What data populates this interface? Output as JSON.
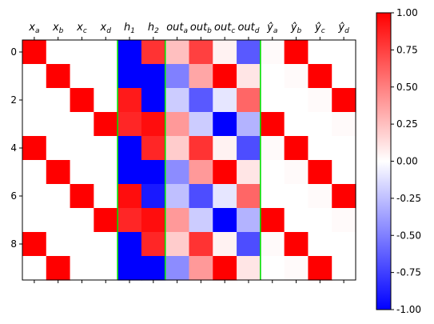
{
  "chart_data": {
    "type": "heatmap",
    "title": "",
    "xlabel": "",
    "ylabel": "",
    "columns": [
      "x_a",
      "x_b",
      "x_c",
      "x_d",
      "h_1",
      "h_2",
      "out_a",
      "out_b",
      "out_c",
      "out_d",
      "ŷ_a",
      "ŷ_b",
      "ŷ_c",
      "ŷ_d"
    ],
    "rows": [
      0,
      1,
      2,
      3,
      4,
      5,
      6,
      7,
      8,
      9
    ],
    "y_ticks": [
      0,
      2,
      4,
      6,
      8
    ],
    "values": [
      [
        1,
        0,
        0,
        0,
        -1.0,
        0.8,
        0.25,
        0.75,
        0.05,
        -0.65,
        0.02,
        1,
        0,
        0
      ],
      [
        0,
        1,
        0,
        0,
        -1.0,
        -1.0,
        -0.5,
        0.35,
        1,
        0.1,
        0,
        0.02,
        1,
        0
      ],
      [
        0,
        0,
        1,
        0,
        0.9,
        -1.0,
        -0.2,
        -0.65,
        -0.1,
        0.6,
        0,
        0,
        0.02,
        1
      ],
      [
        0,
        0,
        0,
        1,
        0.85,
        0.95,
        0.4,
        -0.2,
        -1.0,
        -0.3,
        1,
        0,
        0,
        0.02
      ],
      [
        1,
        0,
        0,
        0,
        -1.0,
        0.85,
        0.2,
        0.8,
        0.05,
        -0.7,
        0.02,
        1,
        0,
        0
      ],
      [
        0,
        1,
        0,
        0,
        -1.0,
        -1.0,
        -0.45,
        0.4,
        1,
        0.1,
        0,
        0.02,
        1,
        0
      ],
      [
        0,
        0,
        1,
        0,
        0.95,
        -0.9,
        -0.25,
        -0.7,
        -0.1,
        0.6,
        0,
        0,
        0.02,
        1
      ],
      [
        0,
        0,
        0,
        1,
        0.85,
        0.95,
        0.4,
        -0.2,
        -1.0,
        -0.3,
        1,
        0,
        0,
        0.02
      ],
      [
        1,
        0,
        0,
        0,
        -1.0,
        0.85,
        0.2,
        0.8,
        0.05,
        -0.7,
        0.02,
        1,
        0,
        0
      ],
      [
        0,
        1,
        0,
        0,
        -1.0,
        -1.0,
        -0.45,
        0.4,
        1,
        0.1,
        0,
        0.02,
        1,
        0
      ]
    ],
    "separators_after_columns": [
      3,
      5,
      9
    ],
    "separator_color": "#00e000",
    "colormap": "bwr",
    "color_low": "#0000ff",
    "color_mid": "#ffffff",
    "color_high": "#ff0000",
    "vmin": -1.0,
    "vmax": 1.0,
    "colorbar_ticks": [
      "1.00",
      "0.75",
      "0.50",
      "0.25",
      "0.00",
      "-0.25",
      "-0.50",
      "-0.75",
      "-1.00"
    ],
    "legend": "right"
  }
}
